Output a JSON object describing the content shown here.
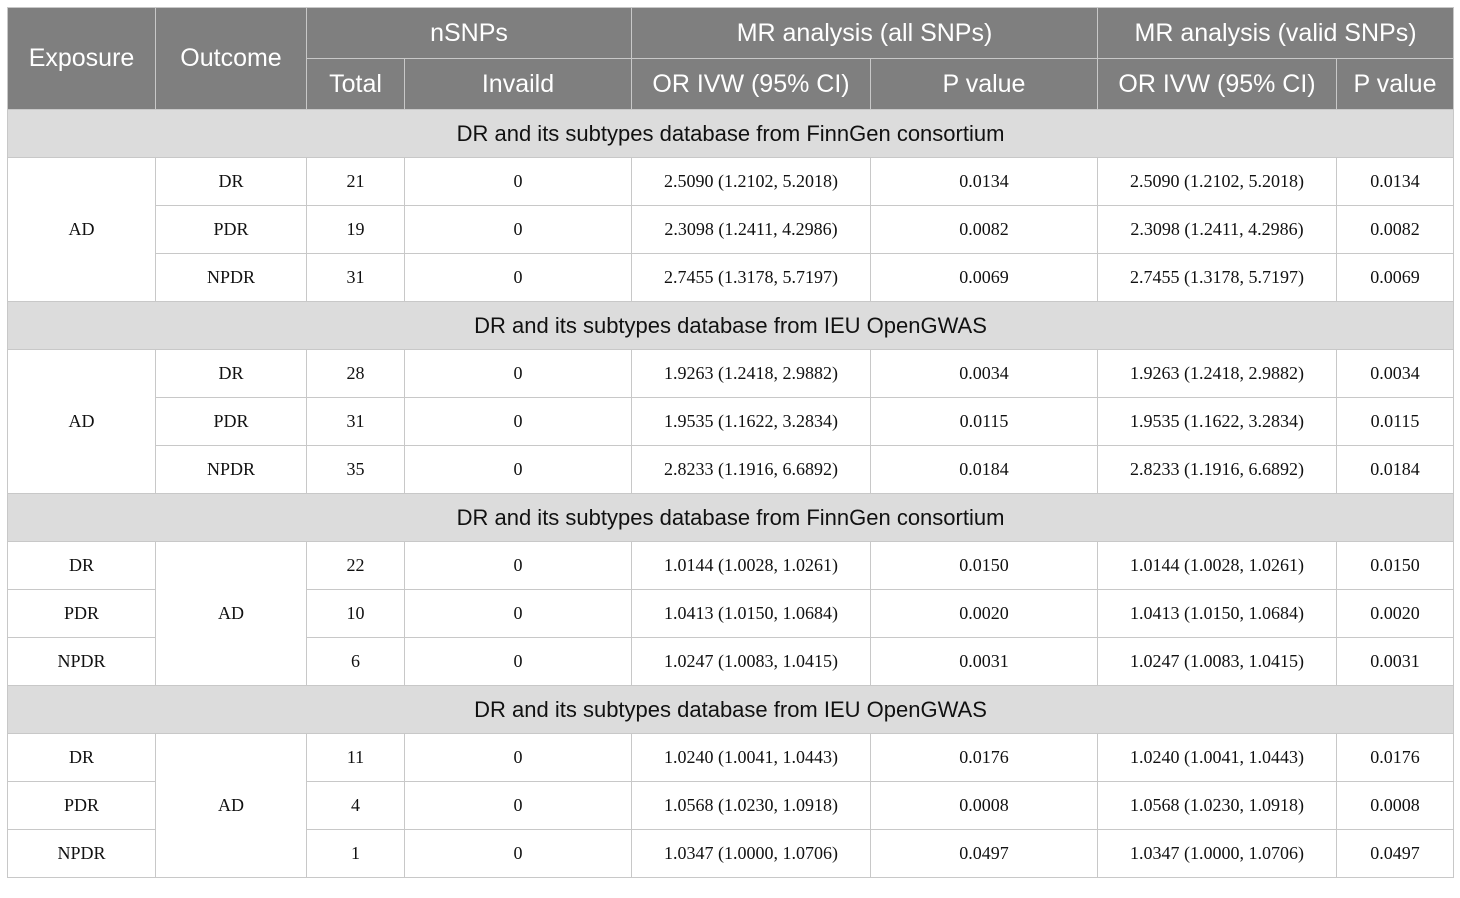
{
  "header": {
    "exposure": "Exposure",
    "outcome": "Outcome",
    "nsnps": "nSNPs",
    "mr_all": "MR analysis (all SNPs)",
    "mr_valid": "MR analysis (valid SNPs)",
    "total": "Total",
    "invalid": "Invaild",
    "or_all": "OR IVW (95% CI)",
    "p_all": "P value",
    "or_valid": "OR IVW (95% CI)",
    "p_valid": "P value"
  },
  "sections": [
    {
      "title": "DR and its subtypes database from FinnGen consortium",
      "group": "AD",
      "rows": [
        {
          "label": "DR",
          "total": "21",
          "invalid": "0",
          "or_all": "2.5090 (1.2102, 5.2018)",
          "p_all": "0.0134",
          "or_valid": "2.5090 (1.2102, 5.2018)",
          "p_valid": "0.0134"
        },
        {
          "label": "PDR",
          "total": "19",
          "invalid": "0",
          "or_all": "2.3098 (1.2411, 4.2986)",
          "p_all": "0.0082",
          "or_valid": "2.3098 (1.2411, 4.2986)",
          "p_valid": "0.0082"
        },
        {
          "label": "NPDR",
          "total": "31",
          "invalid": "0",
          "or_all": "2.7455 (1.3178, 5.7197)",
          "p_all": "0.0069",
          "or_valid": "2.7455 (1.3178, 5.7197)",
          "p_valid": "0.0069"
        }
      ]
    },
    {
      "title": "DR and its subtypes database from IEU OpenGWAS",
      "group": "AD",
      "rows": [
        {
          "label": "DR",
          "total": "28",
          "invalid": "0",
          "or_all": "1.9263 (1.2418, 2.9882)",
          "p_all": "0.0034",
          "or_valid": "1.9263 (1.2418, 2.9882)",
          "p_valid": "0.0034"
        },
        {
          "label": "PDR",
          "total": "31",
          "invalid": "0",
          "or_all": "1.9535 (1.1622, 3.2834)",
          "p_all": "0.0115",
          "or_valid": "1.9535 (1.1622, 3.2834)",
          "p_valid": "0.0115"
        },
        {
          "label": "NPDR",
          "total": "35",
          "invalid": "0",
          "or_all": "2.8233 (1.1916, 6.6892)",
          "p_all": "0.0184",
          "or_valid": "2.8233 (1.1916, 6.6892)",
          "p_valid": "0.0184"
        }
      ]
    },
    {
      "title": "DR and its subtypes database from FinnGen consortium",
      "group": "AD",
      "rows": [
        {
          "label": "DR",
          "total": "22",
          "invalid": "0",
          "or_all": "1.0144 (1.0028, 1.0261)",
          "p_all": "0.0150",
          "or_valid": "1.0144 (1.0028, 1.0261)",
          "p_valid": "0.0150"
        },
        {
          "label": "PDR",
          "total": "10",
          "invalid": "0",
          "or_all": "1.0413 (1.0150, 1.0684)",
          "p_all": "0.0020",
          "or_valid": "1.0413 (1.0150, 1.0684)",
          "p_valid": "0.0020"
        },
        {
          "label": "NPDR",
          "total": "6",
          "invalid": "0",
          "or_all": "1.0247 (1.0083, 1.0415)",
          "p_all": "0.0031",
          "or_valid": "1.0247 (1.0083, 1.0415)",
          "p_valid": "0.0031"
        }
      ]
    },
    {
      "title": "DR and its subtypes database from IEU OpenGWAS",
      "group": "AD",
      "rows": [
        {
          "label": "DR",
          "total": "11",
          "invalid": "0",
          "or_all": "1.0240 (1.0041, 1.0443)",
          "p_all": "0.0176",
          "or_valid": "1.0240 (1.0041, 1.0443)",
          "p_valid": "0.0176"
        },
        {
          "label": "PDR",
          "total": "4",
          "invalid": "0",
          "or_all": "1.0568 (1.0230, 1.0918)",
          "p_all": "0.0008",
          "or_valid": "1.0568 (1.0230, 1.0918)",
          "p_valid": "0.0008"
        },
        {
          "label": "NPDR",
          "total": "1",
          "invalid": "0",
          "or_all": "1.0347 (1.0000, 1.0706)",
          "p_all": "0.0497",
          "or_valid": "1.0347 (1.0000, 1.0706)",
          "p_valid": "0.0497"
        }
      ]
    }
  ]
}
